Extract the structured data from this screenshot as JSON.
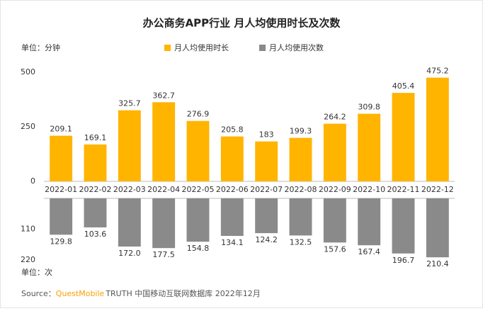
{
  "chart_data": {
    "type": "bar",
    "title": "办公商务APP行业 月人均使用时长及次数",
    "y_label": "单位：分钟",
    "y2_label": "单位：次",
    "categories": [
      "2022-01",
      "2022-02",
      "2022-03",
      "2022-04",
      "2022-05",
      "2022-06",
      "2022-07",
      "2022-08",
      "2022-09",
      "2022-10",
      "2022-11",
      "2022-12"
    ],
    "series": [
      {
        "name": "月人均使用时长",
        "color": "#FFB400",
        "values": [
          209.1,
          169.1,
          325.7,
          362.7,
          276.9,
          205.8,
          183.0,
          199.3,
          264.2,
          309.8,
          405.4,
          475.2
        ]
      },
      {
        "name": "月人均使用次数",
        "color": "#8A8A8A",
        "axis": "y2",
        "values": [
          129.8,
          103.6,
          172.0,
          177.5,
          154.8,
          134.1,
          124.2,
          132.5,
          157.6,
          167.4,
          196.7,
          210.4
        ],
        "value_labels": [
          "129.8",
          "103.6",
          "172.0",
          "177.5",
          "154.8",
          "134.1",
          "124.2",
          "132.5",
          "157.6",
          "167.4",
          "196.7",
          "210.4"
        ]
      }
    ],
    "ylim": [
      0,
      500
    ],
    "yticks": [
      0,
      250,
      500
    ],
    "y2lim": [
      0,
      220
    ],
    "y2ticks": [
      110,
      220
    ],
    "source_label": "Source：",
    "source_brand": "QuestMobile",
    "source_text": "TRUTH 中国移动互联网数据库 2022年12月"
  }
}
